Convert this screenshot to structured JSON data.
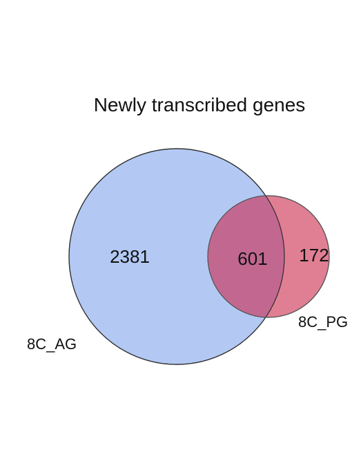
{
  "diagram": {
    "title": "Newly transcribed genes",
    "sets": [
      {
        "id": "ag",
        "label": "8C_AG",
        "color": "#b3c9f4",
        "stroke": "#2b2b2b"
      },
      {
        "id": "pg",
        "label": "8C_PG",
        "color": "#e07f93",
        "stroke": "#555555"
      }
    ],
    "regions": {
      "ag_only": "2381",
      "overlap": "601",
      "pg_only": "172"
    },
    "overlap_color": "#c26890"
  }
}
